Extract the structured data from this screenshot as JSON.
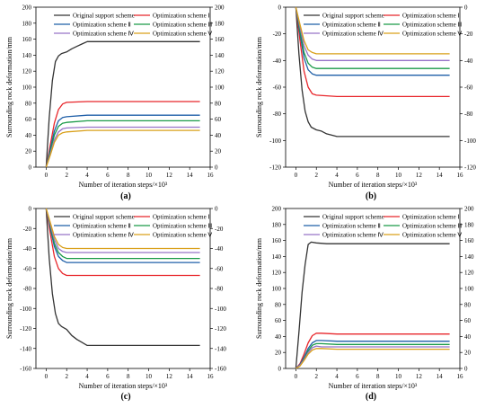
{
  "figure": {
    "subfigure_count": 4
  },
  "chart_data": [
    {
      "type": "line",
      "panel_label": "(a)",
      "xlabel": "Number of iteration steps/×10³",
      "ylabel": "Surrounding rock deformation/mm",
      "xlim": [
        -1,
        16
      ],
      "ylim": [
        0,
        200
      ],
      "xticks": [
        0,
        2,
        4,
        6,
        8,
        10,
        12,
        14,
        16
      ],
      "yticks": [
        0,
        20,
        40,
        60,
        80,
        100,
        120,
        140,
        160,
        180,
        200
      ],
      "right_axis": true,
      "legend": {
        "placement": "top",
        "columns": 2
      },
      "series": [
        {
          "name": "Original support scheme",
          "color": "#333333",
          "x": [
            0,
            0.3,
            0.6,
            0.9,
            1.2,
            1.5,
            2.0,
            2.5,
            3.0,
            3.5,
            4.0,
            6.0,
            10.0,
            15.0
          ],
          "values": [
            0,
            62,
            108,
            132,
            139,
            142,
            144,
            148,
            151,
            154,
            157,
            157,
            157,
            157
          ]
        },
        {
          "name": "Optimization scheme Ⅰ",
          "color": "#e8262b",
          "x": [
            0,
            0.4,
            0.8,
            1.2,
            1.6,
            2.0,
            4.0,
            15.0
          ],
          "values": [
            0,
            28,
            55,
            72,
            79,
            81,
            82,
            82
          ]
        },
        {
          "name": "Optimization scheme Ⅱ",
          "color": "#1f5fa8",
          "x": [
            0,
            0.4,
            0.8,
            1.2,
            1.6,
            2.0,
            4.0,
            15.0
          ],
          "values": [
            0,
            23,
            45,
            58,
            62,
            63,
            65,
            65
          ]
        },
        {
          "name": "Optimization scheme Ⅲ",
          "color": "#1a9a48",
          "x": [
            0,
            0.4,
            0.8,
            1.2,
            1.6,
            2.0,
            4.0,
            15.0
          ],
          "values": [
            0,
            20,
            40,
            51,
            55,
            56,
            58,
            58
          ]
        },
        {
          "name": "Optimization scheme Ⅳ",
          "color": "#9673c8",
          "x": [
            0,
            0.4,
            0.8,
            1.2,
            1.6,
            2.0,
            4.0,
            15.0
          ],
          "values": [
            0,
            17,
            34,
            44,
            48,
            49,
            50,
            50
          ]
        },
        {
          "name": "Optimization scheme Ⅴ",
          "color": "#d9a01a",
          "x": [
            0,
            0.4,
            0.8,
            1.2,
            1.6,
            2.0,
            4.0,
            15.0
          ],
          "values": [
            0,
            15,
            31,
            40,
            43,
            44,
            46,
            46
          ]
        }
      ]
    },
    {
      "type": "line",
      "panel_label": "(b)",
      "xlabel": "Number of iteration steps/×10³",
      "ylabel": "Surrounding rock deformation/mm",
      "xlim": [
        -1,
        16
      ],
      "ylim": [
        -120,
        0
      ],
      "xticks": [
        0,
        2,
        4,
        6,
        8,
        10,
        12,
        14,
        16
      ],
      "yticks": [
        -120,
        -100,
        -80,
        -60,
        -40,
        -20,
        0
      ],
      "right_axis": true,
      "legend": {
        "placement": "top",
        "columns": 2
      },
      "series": [
        {
          "name": "Original support scheme",
          "color": "#333333",
          "x": [
            0,
            0.3,
            0.6,
            0.9,
            1.2,
            1.5,
            2.0,
            2.5,
            3.0,
            3.5,
            4.0,
            6.0,
            10.0,
            15.0
          ],
          "values": [
            0,
            -35,
            -62,
            -78,
            -86,
            -90,
            -92,
            -93,
            -95,
            -96,
            -97,
            -97,
            -97,
            -97
          ]
        },
        {
          "name": "Optimization scheme Ⅰ",
          "color": "#e8262b",
          "x": [
            0,
            0.4,
            0.8,
            1.2,
            1.6,
            2.0,
            4.0,
            15.0
          ],
          "values": [
            0,
            -25,
            -48,
            -60,
            -65,
            -66,
            -67,
            -67
          ]
        },
        {
          "name": "Optimization scheme Ⅱ",
          "color": "#1f5fa8",
          "x": [
            0,
            0.4,
            0.8,
            1.2,
            1.6,
            2.0,
            4.0,
            15.0
          ],
          "values": [
            0,
            -20,
            -38,
            -47,
            -50,
            -51,
            -51,
            -51
          ]
        },
        {
          "name": "Optimization scheme Ⅲ",
          "color": "#1a9a48",
          "x": [
            0,
            0.4,
            0.8,
            1.2,
            1.6,
            2.0,
            4.0,
            15.0
          ],
          "values": [
            0,
            -18,
            -34,
            -42,
            -45,
            -46,
            -46,
            -46
          ]
        },
        {
          "name": "Optimization scheme Ⅳ",
          "color": "#9673c8",
          "x": [
            0,
            0.4,
            0.8,
            1.2,
            1.6,
            2.0,
            4.0,
            15.0
          ],
          "values": [
            0,
            -15,
            -29,
            -36,
            -39,
            -40,
            -40,
            -40
          ]
        },
        {
          "name": "Optimization scheme Ⅴ",
          "color": "#d9a01a",
          "x": [
            0,
            0.4,
            0.8,
            1.2,
            1.6,
            2.0,
            4.0,
            15.0
          ],
          "values": [
            0,
            -13,
            -25,
            -32,
            -34,
            -35,
            -35,
            -35
          ]
        }
      ]
    },
    {
      "type": "line",
      "panel_label": "(c)",
      "xlabel": "Number of iteration steps/×10³",
      "ylabel": "Surrounding rock deformation/mm",
      "xlim": [
        -1,
        16
      ],
      "ylim": [
        -160,
        0
      ],
      "xticks": [
        0,
        2,
        4,
        6,
        8,
        10,
        12,
        14,
        16
      ],
      "yticks": [
        -160,
        -140,
        -120,
        -100,
        -80,
        -60,
        -40,
        -20,
        0
      ],
      "right_axis": true,
      "legend": {
        "placement": "top",
        "columns": 2
      },
      "series": [
        {
          "name": "Original support scheme",
          "color": "#333333",
          "x": [
            0,
            0.3,
            0.6,
            0.9,
            1.2,
            1.5,
            2.0,
            2.5,
            3.0,
            3.5,
            4.0,
            6.0,
            10.0,
            15.0
          ],
          "values": [
            0,
            -50,
            -85,
            -105,
            -115,
            -118,
            -121,
            -127,
            -131,
            -134,
            -137,
            -137,
            -137,
            -137
          ]
        },
        {
          "name": "Optimization scheme Ⅰ",
          "color": "#e8262b",
          "x": [
            0,
            0.4,
            0.8,
            1.2,
            1.6,
            2.0,
            4.0,
            15.0
          ],
          "values": [
            0,
            -25,
            -48,
            -60,
            -65,
            -67,
            -67,
            -67
          ]
        },
        {
          "name": "Optimization scheme Ⅱ",
          "color": "#1f5fa8",
          "x": [
            0,
            0.4,
            0.8,
            1.2,
            1.6,
            2.0,
            4.0,
            15.0
          ],
          "values": [
            0,
            -20,
            -38,
            -48,
            -52,
            -54,
            -54,
            -54
          ]
        },
        {
          "name": "Optimization scheme Ⅲ",
          "color": "#1a9a48",
          "x": [
            0,
            0.4,
            0.8,
            1.2,
            1.6,
            2.0,
            4.0,
            15.0
          ],
          "values": [
            0,
            -18,
            -35,
            -44,
            -48,
            -50,
            -50,
            -50
          ]
        },
        {
          "name": "Optimization scheme Ⅳ",
          "color": "#9673c8",
          "x": [
            0,
            0.4,
            0.8,
            1.2,
            1.6,
            2.0,
            4.0,
            15.0
          ],
          "values": [
            0,
            -16,
            -31,
            -40,
            -43,
            -44,
            -44,
            -44
          ]
        },
        {
          "name": "Optimization scheme Ⅴ",
          "color": "#d9a01a",
          "x": [
            0,
            0.4,
            0.8,
            1.2,
            1.6,
            2.0,
            4.0,
            15.0
          ],
          "values": [
            0,
            -14,
            -28,
            -36,
            -39,
            -40,
            -40,
            -40
          ]
        }
      ]
    },
    {
      "type": "line",
      "panel_label": "(d)",
      "xlabel": "Number of iteration steps/×10³",
      "ylabel": "Surrounding rock deformation/mm",
      "xlim": [
        -1,
        16
      ],
      "ylim": [
        0,
        200
      ],
      "xticks": [
        0,
        2,
        4,
        6,
        8,
        10,
        12,
        14,
        16
      ],
      "yticks": [
        0,
        20,
        40,
        60,
        80,
        100,
        120,
        140,
        160,
        180,
        200
      ],
      "right_axis": true,
      "legend": {
        "placement": "top",
        "columns": 2
      },
      "series": [
        {
          "name": "Original support scheme",
          "color": "#333333",
          "x": [
            0,
            0.3,
            0.6,
            0.9,
            1.2,
            1.5,
            2.0,
            3.0,
            6.0,
            15.0
          ],
          "values": [
            0,
            45,
            95,
            130,
            155,
            158,
            157,
            156,
            156,
            156
          ]
        },
        {
          "name": "Optimization scheme Ⅰ",
          "color": "#e8262b",
          "x": [
            0,
            0.4,
            0.8,
            1.2,
            1.6,
            2.0,
            2.5,
            4.0,
            15.0
          ],
          "values": [
            0,
            6,
            18,
            32,
            41,
            44,
            44,
            43,
            43
          ]
        },
        {
          "name": "Optimization scheme Ⅱ",
          "color": "#1f5fa8",
          "x": [
            0,
            0.4,
            0.8,
            1.2,
            1.6,
            2.0,
            2.5,
            4.0,
            15.0
          ],
          "values": [
            0,
            5,
            14,
            25,
            32,
            35,
            35,
            34,
            34
          ]
        },
        {
          "name": "Optimization scheme Ⅲ",
          "color": "#1a9a48",
          "x": [
            0,
            0.4,
            0.8,
            1.2,
            1.6,
            2.0,
            2.5,
            4.0,
            15.0
          ],
          "values": [
            0,
            4,
            12,
            22,
            29,
            31,
            31,
            30,
            30
          ]
        },
        {
          "name": "Optimization scheme Ⅳ",
          "color": "#9673c8",
          "x": [
            0,
            0.4,
            0.8,
            1.2,
            1.6,
            2.0,
            2.5,
            4.0,
            15.0
          ],
          "values": [
            0,
            4,
            11,
            20,
            26,
            28,
            27,
            27,
            27
          ]
        },
        {
          "name": "Optimization scheme Ⅴ",
          "color": "#d9a01a",
          "x": [
            0,
            0.4,
            0.8,
            1.2,
            1.6,
            2.0,
            2.5,
            4.0,
            15.0
          ],
          "values": [
            0,
            3,
            10,
            18,
            23,
            25,
            25,
            24,
            24
          ]
        }
      ]
    }
  ]
}
